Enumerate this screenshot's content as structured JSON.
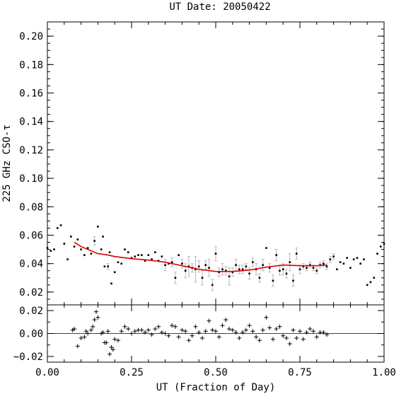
{
  "chart_data": [
    {
      "type": "scatter",
      "panel": "main",
      "title": "UT Date: 20050422",
      "xlabel": "",
      "ylabel": "225 GHz CSO-τ",
      "xlim": [
        0.0,
        1.0
      ],
      "ylim": [
        0.011,
        0.21
      ],
      "yticks": [
        0.02,
        0.04,
        0.06,
        0.08,
        0.1,
        0.12,
        0.14,
        0.16,
        0.18,
        0.2
      ],
      "ytick_labels": [
        "0.02",
        "0.04",
        "0.06",
        "0.08",
        "0.10",
        "0.12",
        "0.14",
        "0.16",
        "0.18",
        "0.20"
      ],
      "xticks": [
        0.0,
        0.25,
        0.5,
        0.75,
        1.0
      ],
      "fit_color": "#e00000",
      "point_color": "#000000",
      "errorbar_color": "#b8b8b8",
      "series": [
        {
          "kind": "points",
          "x": [
            0.0,
            0.01,
            0.02,
            0.03,
            0.04,
            0.05,
            0.06,
            0.07,
            0.08,
            0.09,
            0.1,
            0.11,
            0.12,
            0.13,
            0.14,
            0.15,
            0.16,
            0.165,
            0.17,
            0.18,
            0.185,
            0.19,
            0.2,
            0.21,
            0.22,
            0.23,
            0.24,
            0.25,
            0.26,
            0.27,
            0.28,
            0.29,
            0.3,
            0.31,
            0.32,
            0.33,
            0.34,
            0.35,
            0.36,
            0.37,
            0.38,
            0.39,
            0.4,
            0.41,
            0.42,
            0.43,
            0.44,
            0.45,
            0.46,
            0.47,
            0.48,
            0.49,
            0.5,
            0.51,
            0.52,
            0.53,
            0.54,
            0.55,
            0.56,
            0.57,
            0.58,
            0.59,
            0.6,
            0.61,
            0.62,
            0.63,
            0.64,
            0.65,
            0.66,
            0.67,
            0.68,
            0.69,
            0.7,
            0.71,
            0.72,
            0.73,
            0.74,
            0.75,
            0.76,
            0.77,
            0.78,
            0.79,
            0.8,
            0.81,
            0.82,
            0.83,
            0.84,
            0.85,
            0.86,
            0.87,
            0.88,
            0.89,
            0.9,
            0.91,
            0.92,
            0.93,
            0.94,
            0.95,
            0.96,
            0.97,
            0.98,
            0.99,
            1.0
          ],
          "y": [
            0.051,
            0.049,
            0.05,
            0.065,
            0.067,
            0.054,
            0.043,
            0.059,
            0.052,
            0.057,
            0.05,
            0.046,
            0.051,
            0.047,
            0.056,
            0.066,
            0.05,
            0.059,
            0.038,
            0.038,
            0.048,
            0.026,
            0.034,
            0.041,
            0.04,
            0.05,
            0.048,
            0.044,
            0.045,
            0.046,
            0.046,
            0.042,
            0.046,
            0.043,
            0.048,
            0.042,
            0.045,
            0.039,
            0.04,
            0.041,
            0.03,
            0.046,
            0.04,
            0.035,
            0.038,
            0.037,
            0.036,
            0.038,
            0.03,
            0.039,
            0.037,
            0.025,
            0.047,
            0.034,
            0.036,
            0.035,
            0.031,
            0.034,
            0.039,
            0.036,
            0.036,
            0.038,
            0.033,
            0.041,
            0.036,
            0.03,
            0.039,
            0.051,
            0.037,
            0.028,
            0.046,
            0.035,
            0.036,
            0.033,
            0.041,
            0.028,
            0.047,
            0.036,
            0.038,
            0.037,
            0.039,
            0.037,
            0.035,
            0.039,
            0.04,
            0.038,
            0.043,
            0.045,
            0.036,
            0.041,
            0.04,
            0.044,
            0.037,
            0.043,
            0.044,
            0.04,
            0.043,
            0.025,
            0.027,
            0.03,
            0.047,
            0.052,
            0.054
          ],
          "err": [
            0.0,
            0.0,
            0.0,
            0.0,
            0.0,
            0.0,
            0.0,
            0.0,
            0.0,
            0.0,
            0.0,
            0.0,
            0.0,
            0.0,
            0.003,
            0.0,
            0.0,
            0.0,
            0.0,
            0.002,
            0.0,
            0.0,
            0.0,
            0.0,
            0.0,
            0.0,
            0.0,
            0.0,
            0.0,
            0.0,
            0.0,
            0.0,
            0.0,
            0.0,
            0.0,
            0.0,
            0.0,
            0.004,
            0.0,
            0.003,
            0.004,
            0.0,
            0.003,
            0.005,
            0.007,
            0.003,
            0.009,
            0.004,
            0.005,
            0.003,
            0.006,
            0.004,
            0.005,
            0.003,
            0.004,
            0.003,
            0.006,
            0.003,
            0.004,
            0.003,
            0.003,
            0.002,
            0.004,
            0.003,
            0.004,
            0.003,
            0.004,
            0.0,
            0.003,
            0.004,
            0.004,
            0.003,
            0.004,
            0.003,
            0.006,
            0.004,
            0.004,
            0.003,
            0.002,
            0.002,
            0.002,
            0.002,
            0.002,
            0.002,
            0.002,
            0.002,
            0.002,
            0.002,
            0.0,
            0.0,
            0.0,
            0.0,
            0.0,
            0.0,
            0.0,
            0.0,
            0.0,
            0.0,
            0.0,
            0.0,
            0.0,
            0.0,
            0.0
          ]
        },
        {
          "kind": "fit",
          "x": [
            0.08,
            0.1,
            0.12,
            0.15,
            0.18,
            0.2,
            0.25,
            0.3,
            0.35,
            0.4,
            0.45,
            0.5,
            0.55,
            0.6,
            0.65,
            0.7,
            0.75,
            0.8,
            0.83
          ],
          "y": [
            0.055,
            0.052,
            0.05,
            0.047,
            0.046,
            0.045,
            0.0435,
            0.0425,
            0.041,
            0.0385,
            0.036,
            0.0345,
            0.0345,
            0.0355,
            0.0375,
            0.039,
            0.0385,
            0.0385,
            0.039
          ]
        }
      ]
    },
    {
      "type": "scatter",
      "panel": "residuals",
      "xlabel": "UT (Fraction of Day)",
      "ylabel": "",
      "xlim": [
        0.0,
        1.0
      ],
      "ylim": [
        -0.025,
        0.025
      ],
      "yticks": [
        -0.02,
        0.0,
        0.02
      ],
      "ytick_labels": [
        "−0.02",
        "0.00",
        "0.02"
      ],
      "xticks": [
        0.0,
        0.25,
        0.5,
        0.75,
        1.0
      ],
      "xtick_labels": [
        "0.00",
        "0.25",
        "0.50",
        "0.75",
        "1.00"
      ],
      "zero_line_color": "#e00000",
      "series": [
        {
          "kind": "residuals",
          "x": [
            0.075,
            0.08,
            0.09,
            0.1,
            0.11,
            0.115,
            0.12,
            0.13,
            0.135,
            0.14,
            0.145,
            0.15,
            0.16,
            0.165,
            0.17,
            0.175,
            0.18,
            0.185,
            0.19,
            0.195,
            0.2,
            0.21,
            0.22,
            0.23,
            0.24,
            0.25,
            0.26,
            0.27,
            0.28,
            0.29,
            0.3,
            0.31,
            0.32,
            0.33,
            0.34,
            0.35,
            0.36,
            0.37,
            0.38,
            0.39,
            0.4,
            0.41,
            0.42,
            0.43,
            0.44,
            0.45,
            0.46,
            0.47,
            0.48,
            0.49,
            0.5,
            0.51,
            0.52,
            0.53,
            0.54,
            0.55,
            0.56,
            0.57,
            0.58,
            0.59,
            0.6,
            0.61,
            0.62,
            0.63,
            0.64,
            0.65,
            0.66,
            0.67,
            0.68,
            0.69,
            0.7,
            0.71,
            0.72,
            0.73,
            0.74,
            0.75,
            0.76,
            0.77,
            0.78,
            0.79,
            0.8,
            0.81,
            0.82,
            0.83
          ],
          "y": [
            0.003,
            0.004,
            -0.011,
            -0.004,
            -0.003,
            0.002,
            0.0,
            0.003,
            0.006,
            0.012,
            0.019,
            0.014,
            0.0,
            0.001,
            -0.008,
            -0.008,
            0.002,
            -0.018,
            -0.012,
            -0.014,
            -0.005,
            -0.006,
            0.002,
            0.006,
            0.004,
            0.0,
            0.002,
            0.003,
            0.003,
            0.001,
            0.003,
            -0.001,
            0.004,
            0.006,
            0.001,
            0.0,
            -0.002,
            0.007,
            0.006,
            -0.003,
            0.003,
            0.002,
            -0.006,
            -0.002,
            0.006,
            0.001,
            -0.004,
            0.002,
            0.011,
            0.003,
            0.002,
            -0.003,
            0.007,
            0.012,
            0.004,
            0.003,
            0.001,
            -0.004,
            0.001,
            0.003,
            0.007,
            0.002,
            -0.003,
            -0.006,
            0.003,
            0.014,
            0.005,
            -0.005,
            0.004,
            0.006,
            -0.002,
            -0.004,
            -0.009,
            0.003,
            -0.004,
            0.002,
            -0.005,
            0.001,
            0.004,
            0.002,
            -0.003,
            0.001,
            0.001,
            -0.001
          ]
        }
      ]
    }
  ]
}
